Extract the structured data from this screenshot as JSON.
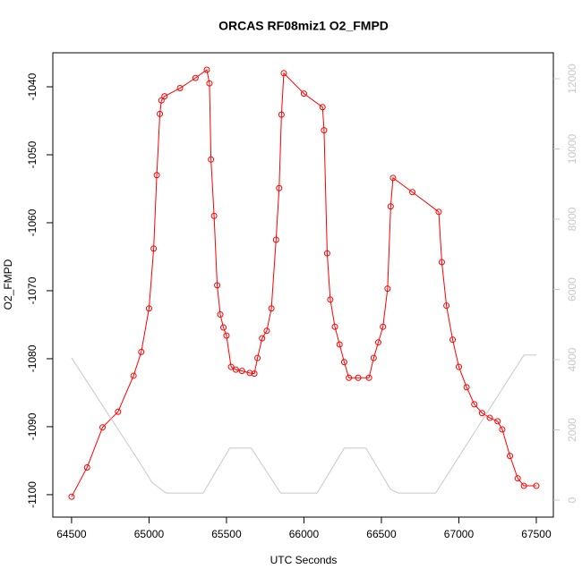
{
  "chart_data": {
    "type": "line",
    "title": "ORCAS RF08miz1 O2_FMPD",
    "x_label": "UTC Seconds",
    "y_label": "O2_FMPD",
    "xlim": [
      64379,
      67610
    ],
    "xticks": [
      64500,
      65000,
      65500,
      66000,
      66500,
      67000,
      67500
    ],
    "ylim": [
      -1103.3,
      -1035
    ],
    "yticks": [
      -1100,
      -1090,
      -1080,
      -1070,
      -1060,
      -1050,
      -1040
    ],
    "y2lim": [
      -484,
      12739
    ],
    "y2ticks": [
      0,
      2000,
      4000,
      6000,
      8000,
      10000,
      12000
    ],
    "series": [
      {
        "color": "#ff0000",
        "markers": true,
        "x": [
          64500,
          64600,
          64700,
          64800,
          64900,
          64950,
          65000,
          65030,
          65050,
          65070,
          65080,
          65100,
          65200,
          65300,
          65373,
          65390,
          65400,
          65420,
          65440,
          65460,
          65480,
          65500,
          65530,
          65560,
          65600,
          65650,
          65680,
          65700,
          65730,
          65760,
          65790,
          65820,
          65840,
          65855,
          65870,
          66000,
          66120,
          66130,
          66150,
          66170,
          66200,
          66230,
          66260,
          66290,
          66350,
          66420,
          66450,
          66480,
          66510,
          66540,
          66560,
          66575,
          66700,
          66870,
          66890,
          66920,
          66960,
          67000,
          67050,
          67100,
          67150,
          67200,
          67250,
          67280,
          67330,
          67380,
          67420,
          67500
        ],
        "values": [
          -1100.3,
          -1096,
          -1090.1,
          -1087.8,
          -1082.5,
          -1079,
          -1072.6,
          -1063.8,
          -1053,
          -1044,
          -1042,
          -1041.4,
          -1040.2,
          -1038.7,
          -1037.5,
          -1039.5,
          -1050.7,
          -1059,
          -1069.2,
          -1073.5,
          -1075.4,
          -1076.6,
          -1081.2,
          -1081.6,
          -1081.8,
          -1082.1,
          -1082.2,
          -1079.9,
          -1077,
          -1075.9,
          -1072.6,
          -1062.5,
          -1054.9,
          -1044.1,
          -1038,
          -1041,
          -1043,
          -1046.4,
          -1064.5,
          -1071.3,
          -1075.3,
          -1077.9,
          -1080.5,
          -1082.8,
          -1082.8,
          -1082.8,
          -1079.9,
          -1077.6,
          -1075.3,
          -1069.7,
          -1057.6,
          -1053.4,
          -1055.5,
          -1058.4,
          -1065.8,
          -1072.2,
          -1077.2,
          -1081.2,
          -1084.2,
          -1086.7,
          -1088,
          -1088.7,
          -1089.2,
          -1090.4,
          -1094.3,
          -1097.6,
          -1098.7,
          -1098.7
        ]
      },
      {
        "color": "#c8c8c8",
        "axis": "y2",
        "markers": false,
        "x": [
          64500,
          64950,
          65020,
          65110,
          65350,
          65520,
          65660,
          65850,
          66085,
          66260,
          66400,
          66560,
          66610,
          66850,
          67420,
          67500
        ],
        "values": [
          4050,
          1000,
          500,
          200,
          200,
          1480,
          1480,
          200,
          200,
          1480,
          1480,
          300,
          200,
          200,
          4130,
          4130
        ]
      }
    ]
  }
}
